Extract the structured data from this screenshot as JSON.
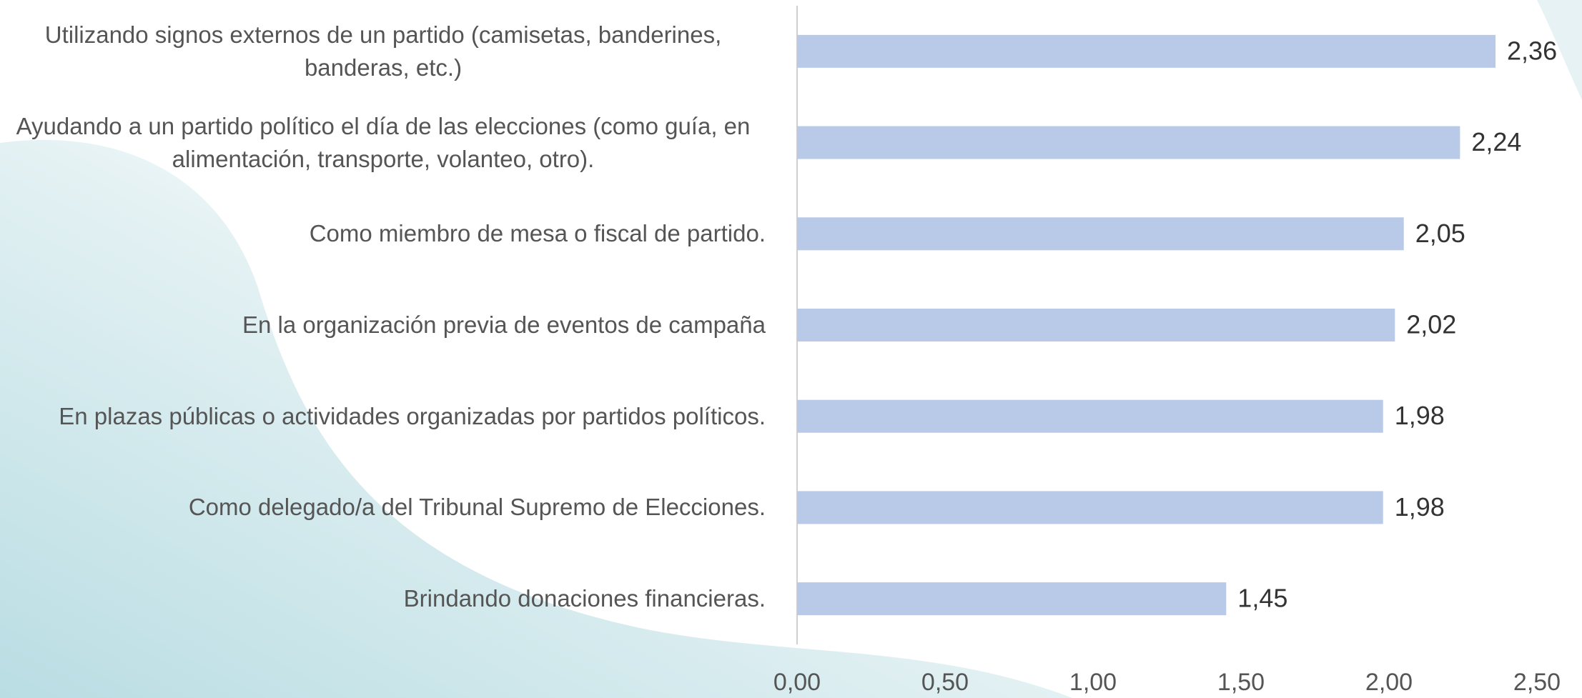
{
  "chart_data": {
    "type": "bar",
    "orientation": "horizontal",
    "categories": [
      "Utilizando signos externos de un partido (camisetas, banderines, banderas, etc.)",
      "Ayudando a un partido político el día de las elecciones (como guía, en alimentación, transporte, volanteo, otro).",
      "Como miembro de mesa o fiscal de partido.",
      "En la organización previa de eventos de campaña",
      "En plazas públicas o actividades organizadas por partidos políticos.",
      "Como delegado/a del Tribunal Supremo de Elecciones.",
      "Brindando donaciones financieras."
    ],
    "values": [
      2.36,
      2.24,
      2.05,
      2.02,
      1.98,
      1.98,
      1.45
    ],
    "value_labels": [
      "2,36",
      "2,24",
      "2,05",
      "2,02",
      "1,98",
      "1,98",
      "1,45"
    ],
    "color": "#b9c9e8",
    "xlim": [
      0,
      2.5
    ],
    "xticks": [
      {
        "value": 0,
        "label": "0,00"
      },
      {
        "value": 0.5,
        "label": "0,50"
      },
      {
        "value": 1,
        "label": "1,00"
      },
      {
        "value": 1.5,
        "label": "1,50"
      },
      {
        "value": 2,
        "label": "2,00"
      },
      {
        "value": 2.5,
        "label": "2,50"
      }
    ],
    "grid": false
  }
}
